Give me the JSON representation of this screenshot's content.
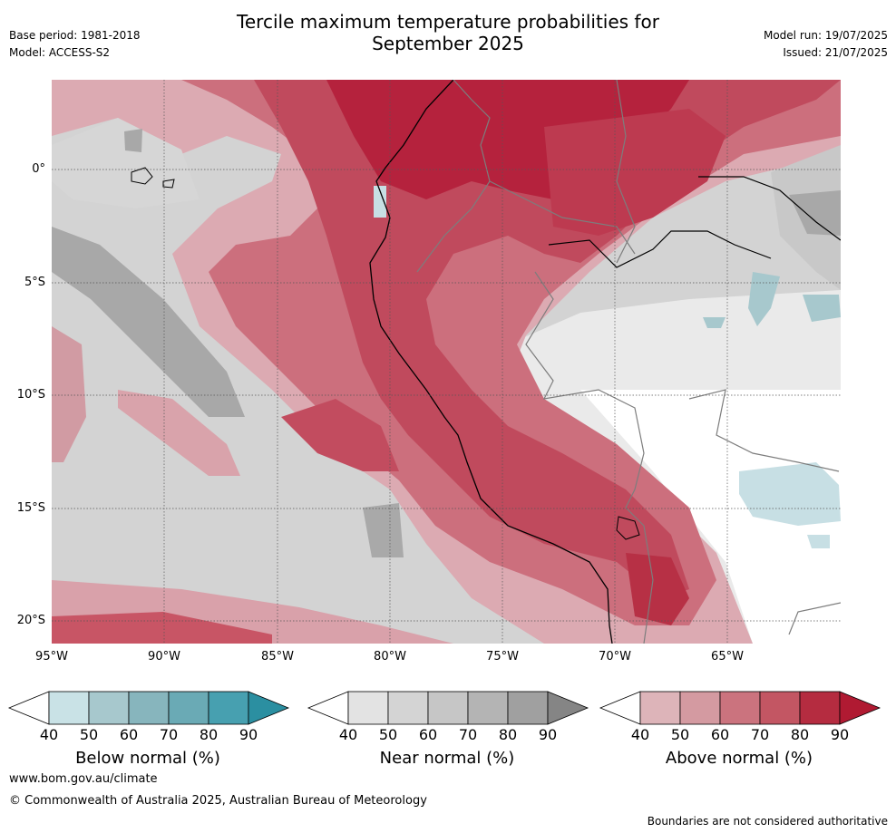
{
  "header": {
    "title_line1": "Tercile maximum temperature probabilities for",
    "title_line2": "September 2025",
    "base_period": "Base period: 1981-2018",
    "model": "Model: ACCESS-S2",
    "model_run": "Model run: 19/07/2025",
    "issued": "Issued: 21/07/2025"
  },
  "map": {
    "lat_labels": [
      "0°",
      "5°S",
      "10°S",
      "15°S",
      "20°S"
    ],
    "lon_labels": [
      "95°W",
      "90°W",
      "85°W",
      "80°W",
      "75°W",
      "70°W",
      "65°W"
    ],
    "colors": {
      "near_normal": "#d3d3d3",
      "near_dark": "#a9a9a9",
      "above_light": "#dcaab2",
      "above_mid": "#cf6f7d",
      "above_dark": "#b5223d",
      "below_light": "#c7dfe4",
      "white": "#ffffff"
    }
  },
  "colorbars": [
    {
      "label": "Below normal (%)",
      "ticks": [
        "40",
        "50",
        "60",
        "70",
        "80",
        "90"
      ],
      "colors": [
        "#ffffff",
        "#c9e2e6",
        "#a7c8cd",
        "#87b5bd",
        "#6aaab5",
        "#47a0b0",
        "#2b8fa1"
      ]
    },
    {
      "label": "Near normal (%)",
      "ticks": [
        "40",
        "50",
        "60",
        "70",
        "80",
        "90"
      ],
      "colors": [
        "#ffffff",
        "#e3e3e3",
        "#d4d4d4",
        "#c6c6c6",
        "#b4b4b4",
        "#a0a0a0",
        "#858585"
      ]
    },
    {
      "label": "Above normal (%)",
      "ticks": [
        "40",
        "50",
        "60",
        "70",
        "80",
        "90"
      ],
      "colors": [
        "#ffffff",
        "#ddb4b9",
        "#d49aa1",
        "#cb737e",
        "#c35663",
        "#b52c40",
        "#b01a32"
      ]
    }
  ],
  "footer": {
    "website": "www.bom.gov.au/climate",
    "copyright": "© Commonwealth of Australia 2025, Australian Bureau of Meteorology",
    "disclaimer": "Boundaries are not considered authoritative"
  }
}
